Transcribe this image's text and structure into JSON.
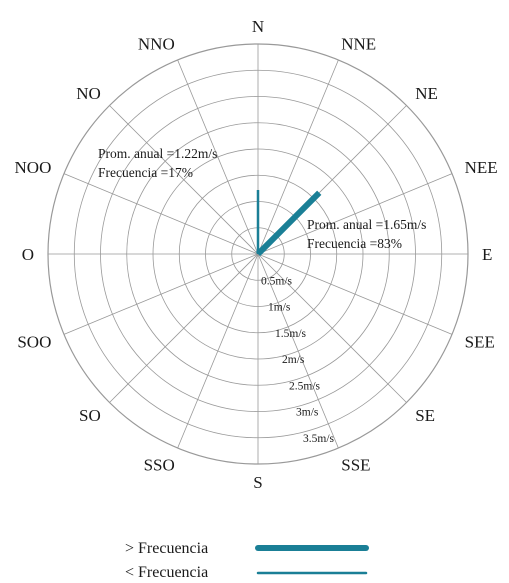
{
  "chart_data": {
    "type": "wind-rose",
    "directions": [
      "N",
      "NNE",
      "NE",
      "NEE",
      "E",
      "SEE",
      "SE",
      "SSE",
      "S",
      "SSO",
      "SO",
      "SOO",
      "O",
      "NOO",
      "NO",
      "NNO"
    ],
    "ring_labels": [
      "0.5m/s",
      "1m/s",
      "1.5m/s",
      "2m/s",
      "2.5m/s",
      "3m/s",
      "3.5m/s"
    ],
    "rmax": 4.0,
    "series": [
      {
        "direction": "NE",
        "speed_mps": 1.65,
        "frequency_pct": 83,
        "style": "thick",
        "note_line1": "Prom. anual   =1.65m/s",
        "note_line2": "Frecuencia     =83%"
      },
      {
        "direction": "N",
        "speed_mps": 1.22,
        "frequency_pct": 17,
        "style": "thin",
        "note_line1": "Prom. anual   =1.22m/s",
        "note_line2": "Frecuencia     =17%"
      }
    ],
    "legend": [
      {
        "label": "> Frecuencia",
        "style": "thick"
      },
      {
        "label": "< Frecuencia",
        "style": "thin"
      }
    ],
    "colors": {
      "vector": "#1a7f96",
      "grid": "#999999",
      "text": "#1a1a1a"
    }
  }
}
